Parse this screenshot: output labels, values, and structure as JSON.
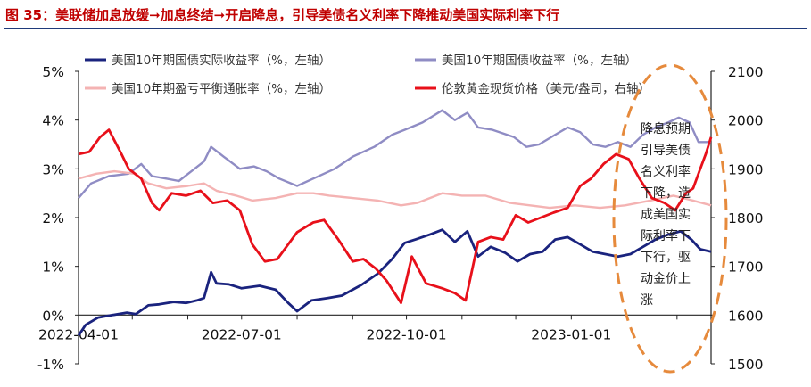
{
  "title": "图 35：美联储加息放缓➞加息终结➞开启降息，引导美债名义利率下降推动美国实际利率下行",
  "annotation": [
    "降息预期",
    "引导美债",
    "名义利率",
    "下降，造",
    "成美国实",
    "际利率下",
    "下行，驱",
    "动金价上",
    "涨"
  ],
  "colors": {
    "title": "#c00000",
    "rule": "#1f3a7a",
    "real_yield": "#1a237e",
    "nominal_yield": "#8f8cc4",
    "breakeven": "#f4b3b3",
    "gold": "#e8101a",
    "ellipse": "#e68a3c"
  },
  "chart_data": {
    "type": "line",
    "x_ticks": [
      "2022-04-01",
      "2022-07-01",
      "2022-10-01",
      "2023-01-01"
    ],
    "x_range": [
      "2022-04-01",
      "2023-03-20"
    ],
    "y_left": {
      "range": [
        -1,
        5
      ],
      "ticks": [
        "-1%",
        "0%",
        "1%",
        "2%",
        "3%",
        "4%",
        "5%"
      ]
    },
    "y_right": {
      "range": [
        1500,
        2100
      ],
      "ticks": [
        "1500",
        "1600",
        "1700",
        "1800",
        "1900",
        "2000",
        "2100"
      ]
    },
    "legend": [
      {
        "label": "美国10年期国债实际收益率（%，左轴）",
        "key": "real_yield"
      },
      {
        "label": "美国10年期国债收益率（%，左轴）",
        "key": "nominal_yield"
      },
      {
        "label": "美国10年期盈亏平衡通胀率（%，左轴）",
        "key": "breakeven"
      },
      {
        "label": "伦敦黄金现货价格（美元/盎司，右轴）",
        "key": "gold"
      }
    ],
    "series": [
      {
        "key": "real_yield",
        "axis": "left",
        "points": [
          [
            "2022-04-01",
            -0.42
          ],
          [
            "2022-04-05",
            -0.2
          ],
          [
            "2022-04-12",
            -0.05
          ],
          [
            "2022-04-20",
            0.0
          ],
          [
            "2022-04-28",
            0.05
          ],
          [
            "2022-05-03",
            0.02
          ],
          [
            "2022-05-10",
            0.2
          ],
          [
            "2022-05-16",
            0.22
          ],
          [
            "2022-05-24",
            0.27
          ],
          [
            "2022-05-31",
            0.25
          ],
          [
            "2022-06-06",
            0.3
          ],
          [
            "2022-06-10",
            0.35
          ],
          [
            "2022-06-14",
            0.88
          ],
          [
            "2022-06-17",
            0.65
          ],
          [
            "2022-06-24",
            0.63
          ],
          [
            "2022-07-01",
            0.55
          ],
          [
            "2022-07-11",
            0.6
          ],
          [
            "2022-07-20",
            0.52
          ],
          [
            "2022-07-27",
            0.25
          ],
          [
            "2022-08-01",
            0.08
          ],
          [
            "2022-08-09",
            0.3
          ],
          [
            "2022-08-18",
            0.35
          ],
          [
            "2022-08-26",
            0.4
          ],
          [
            "2022-09-06",
            0.62
          ],
          [
            "2022-09-15",
            0.85
          ],
          [
            "2022-09-23",
            1.15
          ],
          [
            "2022-09-30",
            1.48
          ],
          [
            "2022-10-06",
            1.55
          ],
          [
            "2022-10-14",
            1.65
          ],
          [
            "2022-10-21",
            1.75
          ],
          [
            "2022-10-28",
            1.5
          ],
          [
            "2022-11-04",
            1.72
          ],
          [
            "2022-11-10",
            1.2
          ],
          [
            "2022-11-17",
            1.4
          ],
          [
            "2022-11-25",
            1.28
          ],
          [
            "2022-12-02",
            1.1
          ],
          [
            "2022-12-09",
            1.25
          ],
          [
            "2022-12-16",
            1.3
          ],
          [
            "2022-12-23",
            1.55
          ],
          [
            "2022-12-30",
            1.6
          ],
          [
            "2023-01-06",
            1.45
          ],
          [
            "2023-01-13",
            1.3
          ],
          [
            "2023-01-20",
            1.25
          ],
          [
            "2023-01-27",
            1.2
          ],
          [
            "2023-02-03",
            1.25
          ],
          [
            "2023-02-10",
            1.4
          ],
          [
            "2023-02-17",
            1.55
          ],
          [
            "2023-02-24",
            1.65
          ],
          [
            "2023-03-03",
            1.72
          ],
          [
            "2023-03-09",
            1.55
          ],
          [
            "2023-03-14",
            1.35
          ],
          [
            "2023-03-20",
            1.3
          ]
        ]
      },
      {
        "key": "nominal_yield",
        "axis": "left",
        "points": [
          [
            "2022-04-01",
            2.4
          ],
          [
            "2022-04-08",
            2.7
          ],
          [
            "2022-04-18",
            2.85
          ],
          [
            "2022-04-29",
            2.9
          ],
          [
            "2022-05-06",
            3.1
          ],
          [
            "2022-05-12",
            2.85
          ],
          [
            "2022-05-20",
            2.8
          ],
          [
            "2022-05-27",
            2.75
          ],
          [
            "2022-06-03",
            2.95
          ],
          [
            "2022-06-10",
            3.15
          ],
          [
            "2022-06-14",
            3.45
          ],
          [
            "2022-06-21",
            3.25
          ],
          [
            "2022-06-30",
            3.0
          ],
          [
            "2022-07-08",
            3.05
          ],
          [
            "2022-07-15",
            2.95
          ],
          [
            "2022-07-22",
            2.8
          ],
          [
            "2022-08-01",
            2.65
          ],
          [
            "2022-08-10",
            2.8
          ],
          [
            "2022-08-22",
            3.0
          ],
          [
            "2022-09-01",
            3.25
          ],
          [
            "2022-09-13",
            3.45
          ],
          [
            "2022-09-23",
            3.7
          ],
          [
            "2022-09-30",
            3.8
          ],
          [
            "2022-10-10",
            3.95
          ],
          [
            "2022-10-21",
            4.2
          ],
          [
            "2022-10-28",
            4.0
          ],
          [
            "2022-11-04",
            4.15
          ],
          [
            "2022-11-10",
            3.85
          ],
          [
            "2022-11-18",
            3.8
          ],
          [
            "2022-11-30",
            3.65
          ],
          [
            "2022-12-07",
            3.45
          ],
          [
            "2022-12-14",
            3.5
          ],
          [
            "2022-12-23",
            3.7
          ],
          [
            "2022-12-30",
            3.85
          ],
          [
            "2023-01-06",
            3.75
          ],
          [
            "2023-01-13",
            3.5
          ],
          [
            "2023-01-20",
            3.45
          ],
          [
            "2023-01-27",
            3.55
          ],
          [
            "2023-02-03",
            3.45
          ],
          [
            "2023-02-10",
            3.7
          ],
          [
            "2023-02-17",
            3.85
          ],
          [
            "2023-02-24",
            3.95
          ],
          [
            "2023-03-02",
            4.05
          ],
          [
            "2023-03-08",
            3.95
          ],
          [
            "2023-03-13",
            3.55
          ],
          [
            "2023-03-20",
            3.55
          ]
        ]
      },
      {
        "key": "breakeven",
        "axis": "left",
        "points": [
          [
            "2022-04-01",
            2.8
          ],
          [
            "2022-04-11",
            2.9
          ],
          [
            "2022-04-21",
            2.95
          ],
          [
            "2022-05-02",
            2.9
          ],
          [
            "2022-05-10",
            2.7
          ],
          [
            "2022-05-20",
            2.6
          ],
          [
            "2022-06-01",
            2.65
          ],
          [
            "2022-06-10",
            2.7
          ],
          [
            "2022-06-17",
            2.55
          ],
          [
            "2022-06-28",
            2.45
          ],
          [
            "2022-07-07",
            2.35
          ],
          [
            "2022-07-20",
            2.4
          ],
          [
            "2022-08-01",
            2.5
          ],
          [
            "2022-08-10",
            2.5
          ],
          [
            "2022-08-19",
            2.45
          ],
          [
            "2022-09-01",
            2.4
          ],
          [
            "2022-09-15",
            2.35
          ],
          [
            "2022-09-28",
            2.25
          ],
          [
            "2022-10-07",
            2.3
          ],
          [
            "2022-10-21",
            2.5
          ],
          [
            "2022-11-01",
            2.45
          ],
          [
            "2022-11-14",
            2.45
          ],
          [
            "2022-11-28",
            2.3
          ],
          [
            "2022-12-09",
            2.25
          ],
          [
            "2022-12-20",
            2.2
          ],
          [
            "2023-01-03",
            2.25
          ],
          [
            "2023-01-17",
            2.2
          ],
          [
            "2023-01-31",
            2.25
          ],
          [
            "2023-02-14",
            2.35
          ],
          [
            "2023-02-27",
            2.45
          ],
          [
            "2023-03-10",
            2.35
          ],
          [
            "2023-03-20",
            2.25
          ]
        ]
      },
      {
        "key": "gold",
        "axis": "right",
        "points": [
          [
            "2022-04-01",
            1930
          ],
          [
            "2022-04-07",
            1935
          ],
          [
            "2022-04-13",
            1965
          ],
          [
            "2022-04-18",
            1980
          ],
          [
            "2022-04-25",
            1930
          ],
          [
            "2022-04-29",
            1900
          ],
          [
            "2022-05-06",
            1880
          ],
          [
            "2022-05-12",
            1830
          ],
          [
            "2022-05-16",
            1815
          ],
          [
            "2022-05-23",
            1850
          ],
          [
            "2022-05-31",
            1845
          ],
          [
            "2022-06-08",
            1855
          ],
          [
            "2022-06-15",
            1830
          ],
          [
            "2022-06-23",
            1835
          ],
          [
            "2022-06-30",
            1815
          ],
          [
            "2022-07-07",
            1745
          ],
          [
            "2022-07-14",
            1710
          ],
          [
            "2022-07-21",
            1715
          ],
          [
            "2022-08-01",
            1770
          ],
          [
            "2022-08-10",
            1790
          ],
          [
            "2022-08-16",
            1795
          ],
          [
            "2022-08-24",
            1755
          ],
          [
            "2022-09-01",
            1710
          ],
          [
            "2022-09-07",
            1715
          ],
          [
            "2022-09-14",
            1695
          ],
          [
            "2022-09-20",
            1670
          ],
          [
            "2022-09-28",
            1625
          ],
          [
            "2022-10-04",
            1720
          ],
          [
            "2022-10-12",
            1665
          ],
          [
            "2022-10-21",
            1655
          ],
          [
            "2022-10-28",
            1645
          ],
          [
            "2022-11-03",
            1630
          ],
          [
            "2022-11-10",
            1750
          ],
          [
            "2022-11-17",
            1760
          ],
          [
            "2022-11-24",
            1755
          ],
          [
            "2022-12-01",
            1805
          ],
          [
            "2022-12-08",
            1790
          ],
          [
            "2022-12-15",
            1800
          ],
          [
            "2022-12-22",
            1810
          ],
          [
            "2022-12-30",
            1820
          ],
          [
            "2023-01-06",
            1865
          ],
          [
            "2023-01-12",
            1880
          ],
          [
            "2023-01-19",
            1910
          ],
          [
            "2023-01-26",
            1930
          ],
          [
            "2023-02-02",
            1920
          ],
          [
            "2023-02-08",
            1880
          ],
          [
            "2023-02-15",
            1840
          ],
          [
            "2023-02-22",
            1830
          ],
          [
            "2023-02-28",
            1815
          ],
          [
            "2023-03-06",
            1850
          ],
          [
            "2023-03-10",
            1860
          ],
          [
            "2023-03-14",
            1900
          ],
          [
            "2023-03-17",
            1930
          ],
          [
            "2023-03-20",
            1965
          ]
        ]
      }
    ]
  }
}
